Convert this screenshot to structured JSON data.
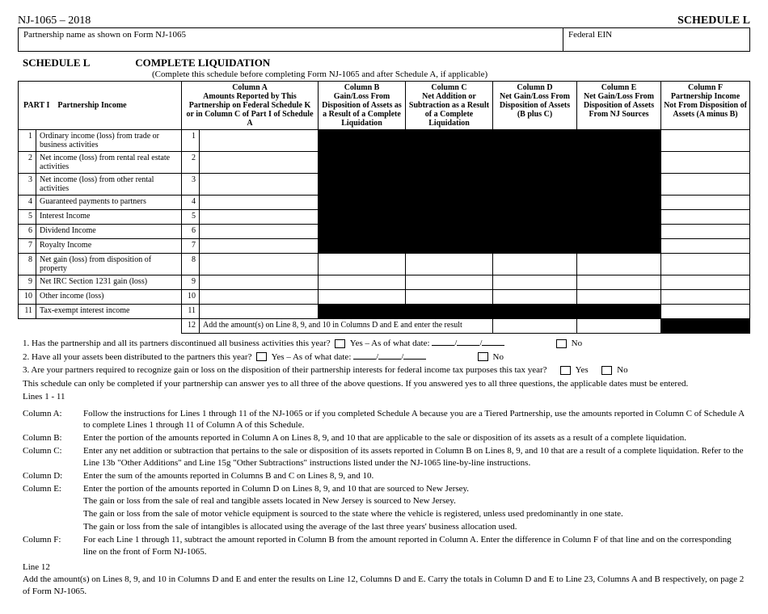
{
  "header": {
    "form_id": "NJ-1065 – 2018",
    "schedule_label": "SCHEDULE L",
    "partnership_name_label": "Partnership name as shown on Form NJ-1065",
    "federal_ein_label": "Federal EIN"
  },
  "title": {
    "schedule": "SCHEDULE L",
    "main": "COMPLETE LIQUIDATION",
    "sub": "(Complete this schedule before completing Form NJ-1065 and after Schedule A, if applicable)"
  },
  "part": {
    "label": "PART I",
    "name": "Partnership Income"
  },
  "columns": {
    "a": {
      "h": "Column A",
      "s": "Amounts Reported by This Partnership on Federal Schedule K or in Column C of Part I of Schedule A"
    },
    "b": {
      "h": "Column B",
      "s": "Gain/Loss From Disposition of Assets as a Result of a Complete Liquidation"
    },
    "c": {
      "h": "Column C",
      "s": "Net Addition or Subtraction as a Result of a Complete Liquidation"
    },
    "d": {
      "h": "Column D",
      "s": "Net Gain/Loss From Disposition of Assets (B plus C)"
    },
    "e": {
      "h": "Column E",
      "s": "Net Gain/Loss From Disposition of Assets From NJ Sources"
    },
    "f": {
      "h": "Column F",
      "s": "Partnership Income Not From Disposition of Assets (A minus B)"
    }
  },
  "rows": [
    {
      "n": "1",
      "label": "Ordinary income (loss) from trade or business activities",
      "tall": true
    },
    {
      "n": "2",
      "label": "Net income (loss) from rental real estate activities",
      "tall": true
    },
    {
      "n": "3",
      "label": "Net income (loss) from other rental activities",
      "tall": true
    },
    {
      "n": "4",
      "label": "Guaranteed payments to partners"
    },
    {
      "n": "5",
      "label": "Interest Income"
    },
    {
      "n": "6",
      "label": "Dividend Income"
    },
    {
      "n": "7",
      "label": "Royalty Income"
    },
    {
      "n": "8",
      "label": "Net gain (loss) from disposition of property",
      "tall": true,
      "open": true
    },
    {
      "n": "9",
      "label": "Net IRC Section 1231 gain (loss)",
      "open": true
    },
    {
      "n": "10",
      "label": "Other income (loss)",
      "open": true
    },
    {
      "n": "11",
      "label": "Tax-exempt interest income"
    }
  ],
  "row12": {
    "n": "12",
    "text": "Add the amount(s) on Line 8, 9, and 10 in Columns D and E and enter the result"
  },
  "questions": {
    "q1a": "1.  Has the partnership and all its partners discontinued all business activities this year?",
    "q1yes": "Yes – As of what date:",
    "no": "No",
    "q2a": "2.  Have all your assets been distributed to the partners this year?",
    "q2yes": "Yes – As of what date:",
    "q3": "3.  Are your partners required to recognize gain or loss on the disposition of their partnership interests for federal income tax purposes this tax year?",
    "yes": "Yes",
    "note": "This schedule can only be completed if your partnership can answer yes to all three of the above questions. If you answered yes to all three questions, the applicable dates must be entered.",
    "lines_hdr": "Lines 1 - 11"
  },
  "instructions": {
    "a": "Follow the instructions for Lines 1 through 11 of the NJ-1065 or if you completed Schedule A because you are a Tiered Partnership, use the amounts reported in Column C of Schedule A to complete Lines 1 through 11 of Column A of this Schedule.",
    "b": "Enter the portion of the amounts reported in Column A on Lines 8, 9, and 10 that are applicable to the sale or disposition of its assets as a result of a complete liquidation.",
    "c": "Enter any net addition or subtraction that pertains to the sale or disposition of its assets reported in Column B on Lines 8, 9, and 10 that are a result of a complete liquidation.  Refer to the Line 13b \"Other Additions\" and Line 15g \"Other Subtractions\" instructions listed under the NJ-1065 line-by-line instructions.",
    "d": "Enter the sum of the amounts reported in Columns B and C on Lines 8, 9, and 10.",
    "e1": "Enter the portion of the amounts reported in Column D on Lines 8, 9, and 10 that are sourced to New Jersey.",
    "e2": "The gain or loss from the sale of real and tangible assets located in New Jersey is sourced to New Jersey.",
    "e3": "The gain or loss from the sale of motor vehicle equipment is sourced to the state where the vehicle is registered, unless used predominantly in one state.",
    "e4": "The gain or loss from the sale of intangibles is allocated using the average of the last three years' business allocation used.",
    "f": "For each Line 1 through 11, subtract the amount reported in Column B from the amount reported in Column A.  Enter the difference in Column F of that line and on the corresponding line on the front of Form NJ-1065.",
    "l12": "Add the amount(s) on Lines 8, 9, and 10 in Columns D and E and enter the results on Line 12, Columns D and E.  Carry the totals in Column D and E to Line 23, Columns A and B respectively, on page 2 of Form NJ-1065."
  },
  "labels": {
    "colA": "Column A:",
    "colB": "Column B:",
    "colC": "Column C:",
    "colD": "Column D:",
    "colE": "Column E:",
    "colF": "Column F:",
    "line12": "Line 12"
  }
}
